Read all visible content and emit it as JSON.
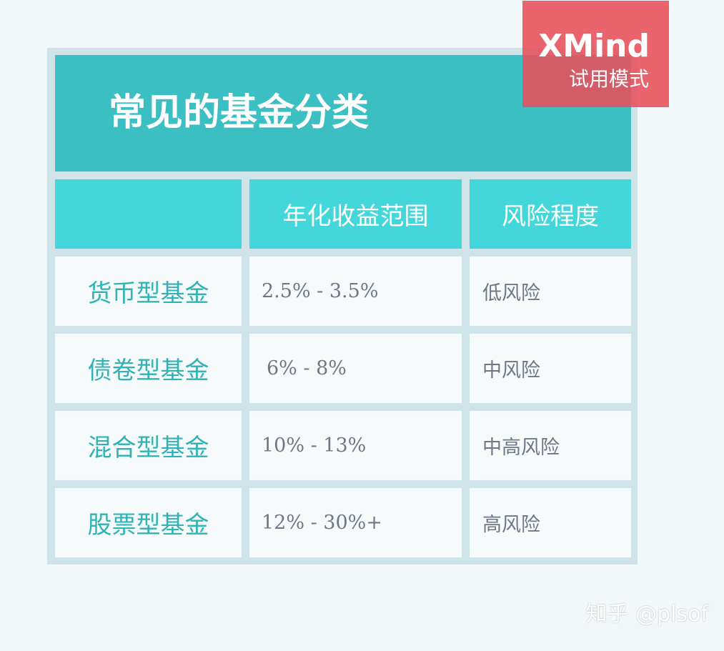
{
  "title": "常见的基金分类",
  "table": {
    "headers": [
      "",
      "年化收益范围",
      "风险程度"
    ],
    "rows": [
      {
        "type": "货币型基金",
        "return_range": "2.5% - 3.5%",
        "risk": "低风险"
      },
      {
        "type": "债卷型基金",
        "return_range": "6% - 8%",
        "risk": "中风险"
      },
      {
        "type": "混合型基金",
        "return_range": "10% - 13%",
        "risk": "中高风险"
      },
      {
        "type": "股票型基金",
        "return_range": "12% - 30%+",
        "risk": "高风险"
      }
    ]
  },
  "watermark": {
    "brand": "XMind",
    "mode": "试用模式"
  },
  "credit": "知乎 @plsof",
  "colors": {
    "title_bar": "#3cbfc3",
    "header_cells": "#43d6da",
    "row_label_text": "#2fb3b6",
    "value_text": "#6f7786",
    "frame": "#cfe4e8",
    "watermark": "#e84e5a"
  }
}
